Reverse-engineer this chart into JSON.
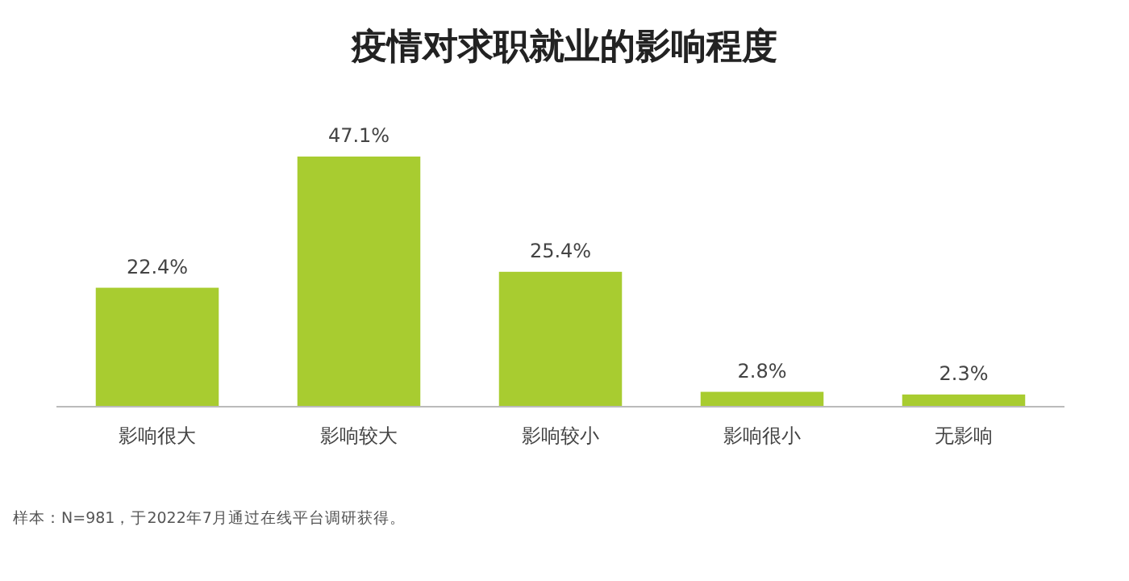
{
  "chart_data": {
    "type": "bar",
    "title": "疫情对求职就业的影响程度",
    "categories": [
      "影响很大",
      "影响较大",
      "影响较小",
      "影响很小",
      "无影响"
    ],
    "values": [
      22.4,
      47.1,
      25.4,
      2.8,
      2.3
    ],
    "value_labels": [
      "22.4%",
      "47.1%",
      "25.4%",
      "2.8%",
      "2.3%"
    ],
    "color": "#a8cc30",
    "annotations": [
      "样本：N=981，于2022年7月通过在线平台调研获得。"
    ]
  }
}
